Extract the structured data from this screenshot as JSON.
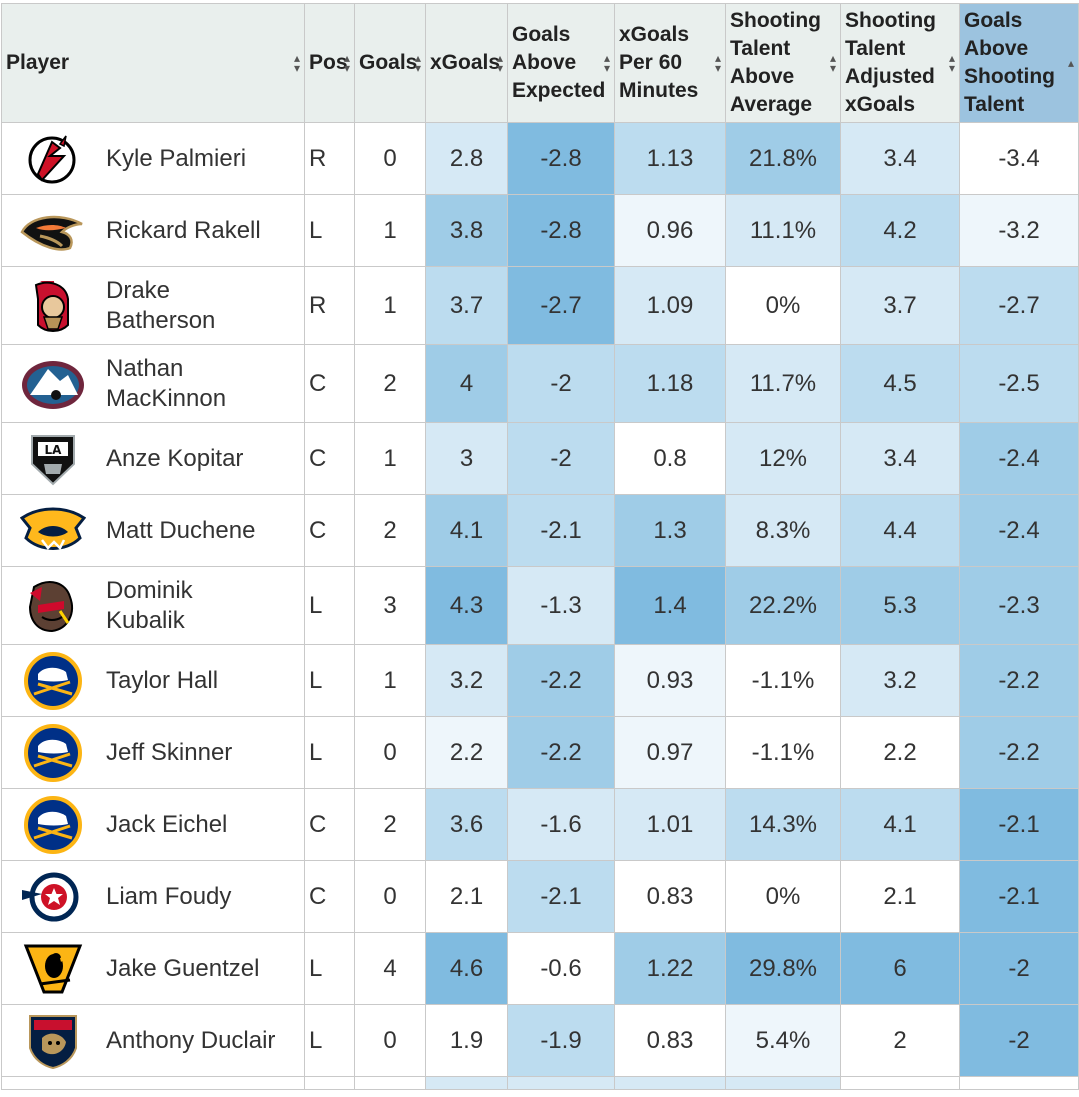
{
  "headers": [
    {
      "label": "Player"
    },
    {
      "label": "Pos"
    },
    {
      "label": "Goals"
    },
    {
      "label": "xGoals"
    },
    {
      "label": "Goals Above Expected"
    },
    {
      "label": "xGoals Per 60 Minutes"
    },
    {
      "label": "Shooting Talent Above Average"
    },
    {
      "label": "Shooting Talent Adjusted xGoals"
    },
    {
      "label": "Goals Above Shooting Talent"
    }
  ],
  "rows": [
    {
      "player": "Kyle Palmieri",
      "team_logo": "devils-logo-icon",
      "pos": "R",
      "goals": "0",
      "xgoals": "2.8",
      "gae": "-2.8",
      "xg60": "1.13",
      "sta": "21.8%",
      "staxg": "3.4",
      "gast": "-3.4"
    },
    {
      "player": "Rickard Rakell",
      "team_logo": "ducks-logo-icon",
      "pos": "L",
      "goals": "1",
      "xgoals": "3.8",
      "gae": "-2.8",
      "xg60": "0.96",
      "sta": "11.1%",
      "staxg": "4.2",
      "gast": "-3.2"
    },
    {
      "player": "Drake Batherson",
      "team_logo": "senators-logo-icon",
      "pos": "R",
      "goals": "1",
      "xgoals": "3.7",
      "gae": "-2.7",
      "xg60": "1.09",
      "sta": "0%",
      "staxg": "3.7",
      "gast": "-2.7"
    },
    {
      "player": "Nathan MacKinnon",
      "team_logo": "avalanche-logo-icon",
      "pos": "C",
      "goals": "2",
      "xgoals": "4",
      "gae": "-2",
      "xg60": "1.18",
      "sta": "11.7%",
      "staxg": "4.5",
      "gast": "-2.5"
    },
    {
      "player": "Anze Kopitar",
      "team_logo": "kings-logo-icon",
      "pos": "C",
      "goals": "1",
      "xgoals": "3",
      "gae": "-2",
      "xg60": "0.8",
      "sta": "12%",
      "staxg": "3.4",
      "gast": "-2.4"
    },
    {
      "player": "Matt Duchene",
      "team_logo": "predators-logo-icon",
      "pos": "C",
      "goals": "2",
      "xgoals": "4.1",
      "gae": "-2.1",
      "xg60": "1.3",
      "sta": "8.3%",
      "staxg": "4.4",
      "gast": "-2.4"
    },
    {
      "player": "Dominik Kubalik",
      "team_logo": "blackhawks-logo-icon",
      "pos": "L",
      "goals": "3",
      "xgoals": "4.3",
      "gae": "-1.3",
      "xg60": "1.4",
      "sta": "22.2%",
      "staxg": "5.3",
      "gast": "-2.3"
    },
    {
      "player": "Taylor Hall",
      "team_logo": "sabres-logo-icon",
      "pos": "L",
      "goals": "1",
      "xgoals": "3.2",
      "gae": "-2.2",
      "xg60": "0.93",
      "sta": "-1.1%",
      "staxg": "3.2",
      "gast": "-2.2"
    },
    {
      "player": "Jeff Skinner",
      "team_logo": "sabres-logo-icon",
      "pos": "L",
      "goals": "0",
      "xgoals": "2.2",
      "gae": "-2.2",
      "xg60": "0.97",
      "sta": "-1.1%",
      "staxg": "2.2",
      "gast": "-2.2"
    },
    {
      "player": "Jack Eichel",
      "team_logo": "sabres-logo-icon",
      "pos": "C",
      "goals": "2",
      "xgoals": "3.6",
      "gae": "-1.6",
      "xg60": "1.01",
      "sta": "14.3%",
      "staxg": "4.1",
      "gast": "-2.1"
    },
    {
      "player": "Liam Foudy",
      "team_logo": "blue-jackets-logo-icon",
      "pos": "C",
      "goals": "0",
      "xgoals": "2.1",
      "gae": "-2.1",
      "xg60": "0.83",
      "sta": "0%",
      "staxg": "2.1",
      "gast": "-2.1"
    },
    {
      "player": "Jake Guentzel",
      "team_logo": "penguins-logo-icon",
      "pos": "L",
      "goals": "4",
      "xgoals": "4.6",
      "gae": "-0.6",
      "xg60": "1.22",
      "sta": "29.8%",
      "staxg": "6",
      "gast": "-2"
    },
    {
      "player": "Anthony Duclair",
      "team_logo": "panthers-logo-icon",
      "pos": "L",
      "goals": "0",
      "xgoals": "1.9",
      "gae": "-1.9",
      "xg60": "0.83",
      "sta": "5.4%",
      "staxg": "2",
      "gast": "-2"
    }
  ],
  "colors": {
    "header_bg": "#e9efed",
    "sorted_header_bg": "#9cc3df",
    "heat_scale": [
      "#ffffff",
      "#eef6fb",
      "#d6e9f5",
      "#bcdcef",
      "#9fcce7",
      "#80bbe0",
      "#66aedb"
    ]
  }
}
